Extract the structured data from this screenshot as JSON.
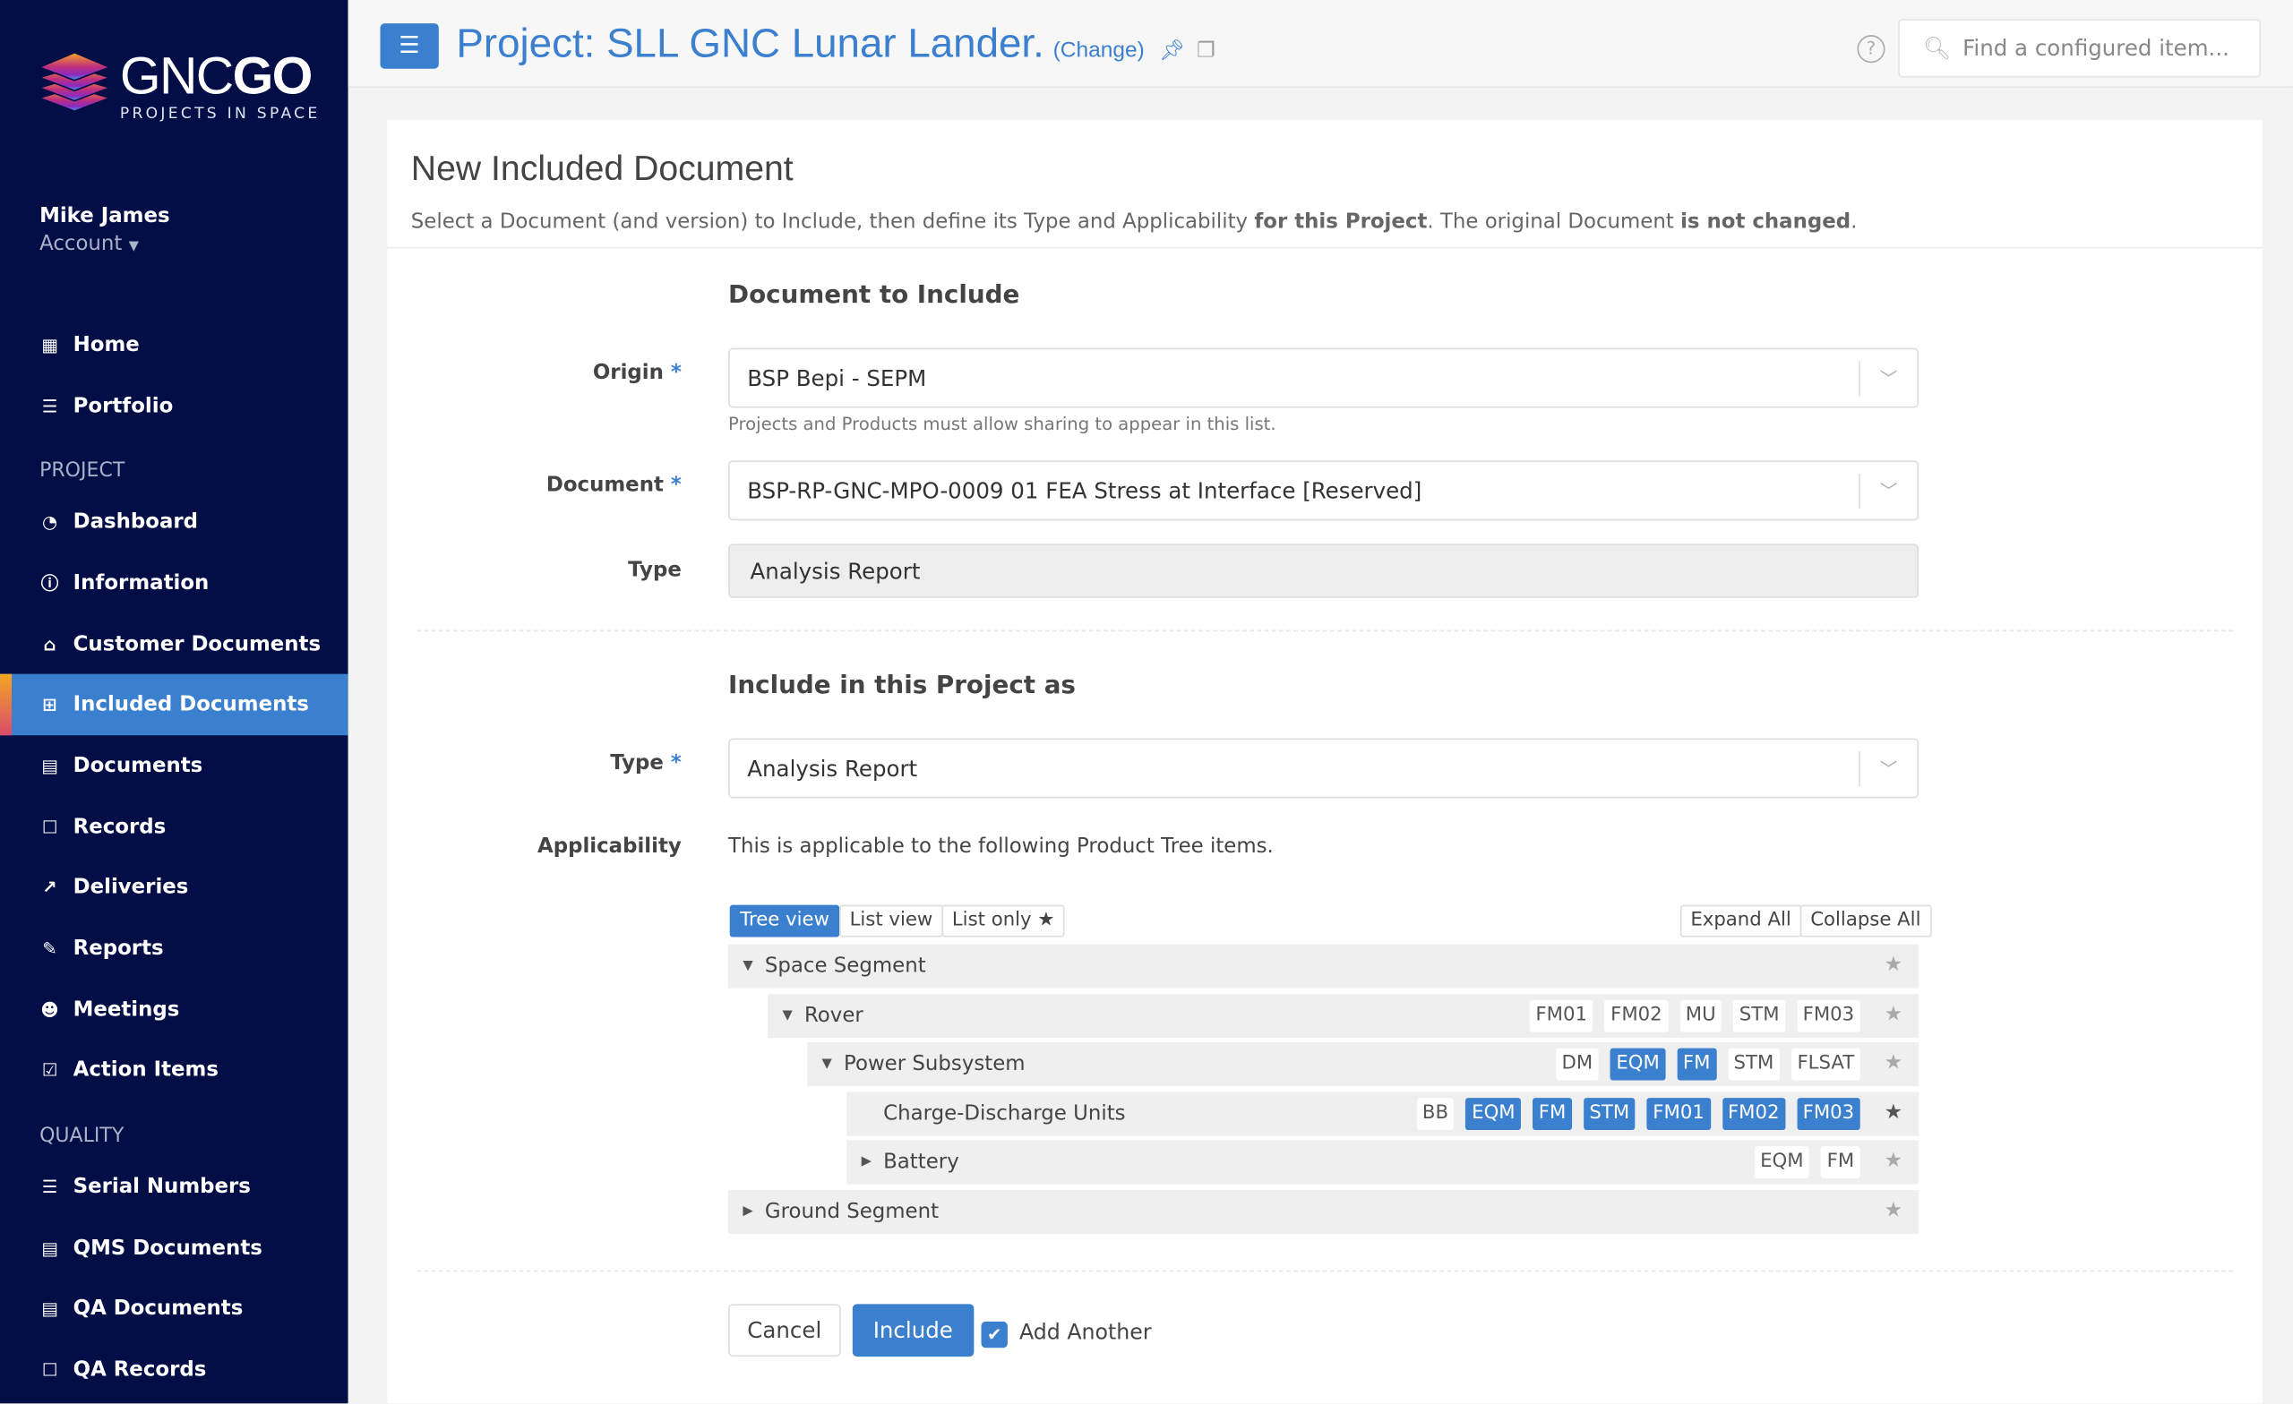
{
  "brand": {
    "name_light": "GNC",
    "name_bold": "GO",
    "tagline": "PROJECTS IN SPACE"
  },
  "user": {
    "name": "Mike James",
    "account": "Account"
  },
  "sidebar": {
    "top": [
      {
        "label": "Home",
        "icon": "grid-icon"
      },
      {
        "label": "Portfolio",
        "icon": "list-icon"
      }
    ],
    "project_heading": "PROJECT",
    "project": [
      {
        "label": "Dashboard",
        "icon": "dashboard-icon"
      },
      {
        "label": "Information",
        "icon": "info-icon"
      },
      {
        "label": "Customer Documents",
        "icon": "bank-icon"
      },
      {
        "label": "Included Documents",
        "icon": "plus-square-icon",
        "active": true
      },
      {
        "label": "Documents",
        "icon": "file-word-icon"
      },
      {
        "label": "Records",
        "icon": "square-icon"
      },
      {
        "label": "Deliveries",
        "icon": "external-link-icon"
      },
      {
        "label": "Reports",
        "icon": "edit-icon"
      },
      {
        "label": "Meetings",
        "icon": "users-icon"
      },
      {
        "label": "Action Items",
        "icon": "check-square-icon"
      }
    ],
    "quality_heading": "QUALITY",
    "quality": [
      {
        "label": "Serial Numbers",
        "icon": "list-icon"
      },
      {
        "label": "QMS Documents",
        "icon": "file-word-icon"
      },
      {
        "label": "QA Documents",
        "icon": "file-word-icon"
      },
      {
        "label": "QA Records",
        "icon": "square-icon"
      }
    ]
  },
  "header": {
    "title": "Project: SLL GNC Lunar Lander.",
    "change": "(Change)",
    "search_placeholder": "Find a configured item..."
  },
  "page": {
    "title": "New Included Document",
    "intro": [
      "Select a Document (and version) to Include, then define its Type and Applicability ",
      "for this Project",
      ". The original Document ",
      "is not changed",
      "."
    ]
  },
  "doc_section": {
    "heading": "Document to Include",
    "origin_label": "Origin",
    "origin_value": "BSP Bepi - SEPM",
    "origin_help": "Projects and Products must allow sharing to appear in this list.",
    "document_label": "Document",
    "document_value": "BSP-RP-GNC-MPO-0009 01 FEA Stress at Interface [Reserved]",
    "type_label": "Type",
    "type_value": "Analysis Report"
  },
  "include_section": {
    "heading": "Include in this Project as",
    "type_label": "Type",
    "type_value": "Analysis Report",
    "applicability_label": "Applicability",
    "applicability_text": "This is applicable to the following Product Tree items.",
    "views": [
      "Tree view",
      "List view",
      "List only"
    ],
    "active_view": "Tree view",
    "expand_all": "Expand All",
    "collapse_all": "Collapse All"
  },
  "tree": [
    {
      "label": "Space Segment",
      "level": 0,
      "caret": "down",
      "tags": [],
      "starred": false
    },
    {
      "label": "Rover",
      "level": 1,
      "caret": "down",
      "tags": [
        {
          "t": "FM01"
        },
        {
          "t": "FM02"
        },
        {
          "t": "MU"
        },
        {
          "t": "STM"
        },
        {
          "t": "FM03"
        }
      ],
      "starred": false
    },
    {
      "label": "Power Subsystem",
      "level": 2,
      "caret": "down",
      "tags": [
        {
          "t": "DM"
        },
        {
          "t": "EQM",
          "on": true
        },
        {
          "t": "FM",
          "on": true
        },
        {
          "t": "STM"
        },
        {
          "t": "FLSAT"
        }
      ],
      "starred": false
    },
    {
      "label": "Charge-Discharge Units",
      "level": 3,
      "caret": "none",
      "tags": [
        {
          "t": "BB"
        },
        {
          "t": "EQM",
          "on": true
        },
        {
          "t": "FM",
          "on": true
        },
        {
          "t": "STM",
          "on": true
        },
        {
          "t": "FM01",
          "on": true
        },
        {
          "t": "FM02",
          "on": true
        },
        {
          "t": "FM03",
          "on": true
        }
      ],
      "starred": true
    },
    {
      "label": "Battery",
      "level": 3,
      "caret": "right",
      "tags": [
        {
          "t": "EQM"
        },
        {
          "t": "FM"
        }
      ],
      "starred": false
    },
    {
      "label": "Ground Segment",
      "level": 0,
      "caret": "right",
      "tags": [],
      "starred": false
    }
  ],
  "actions": {
    "cancel": "Cancel",
    "include": "Include",
    "add_another": "Add Another",
    "add_another_checked": true
  },
  "colors": {
    "sidebar": "#020e45",
    "accent": "#3b7fcf"
  }
}
